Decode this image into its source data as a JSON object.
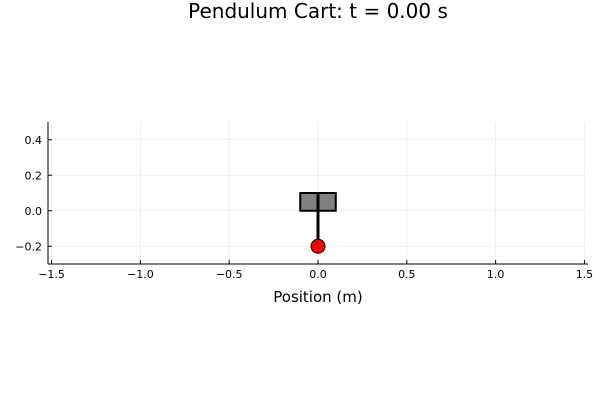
{
  "chart_data": {
    "type": "scatter",
    "title": "Pendulum Cart: t = 0.00 s",
    "xlabel": "Position (m)",
    "ylabel": "",
    "xlim": [
      -1.52,
      1.52
    ],
    "ylim": [
      -0.3,
      0.5
    ],
    "x_ticks": [
      -1.5,
      -1.0,
      -0.5,
      0.0,
      0.5,
      1.0,
      1.5
    ],
    "x_tick_labels": [
      "−1.5",
      "−1.0",
      "−0.5",
      "0.0",
      "0.5",
      "1.0",
      "1.5"
    ],
    "y_ticks": [
      -0.2,
      0.0,
      0.2,
      0.4
    ],
    "y_tick_labels": [
      "−0.2",
      "0.0",
      "0.2",
      "0.4"
    ],
    "grid": true,
    "legend": "none",
    "cart": {
      "x_min": -0.1,
      "x_max": 0.1,
      "y_min": 0.0,
      "y_max": 0.1,
      "fill": "#808080",
      "stroke": "#000000"
    },
    "rod": {
      "x0": 0.0,
      "y0": 0.1,
      "x1": 0.0,
      "y1": -0.2,
      "color": "#000000"
    },
    "bob": {
      "x": 0.0,
      "y": -0.2,
      "color": "#ff0000"
    }
  }
}
